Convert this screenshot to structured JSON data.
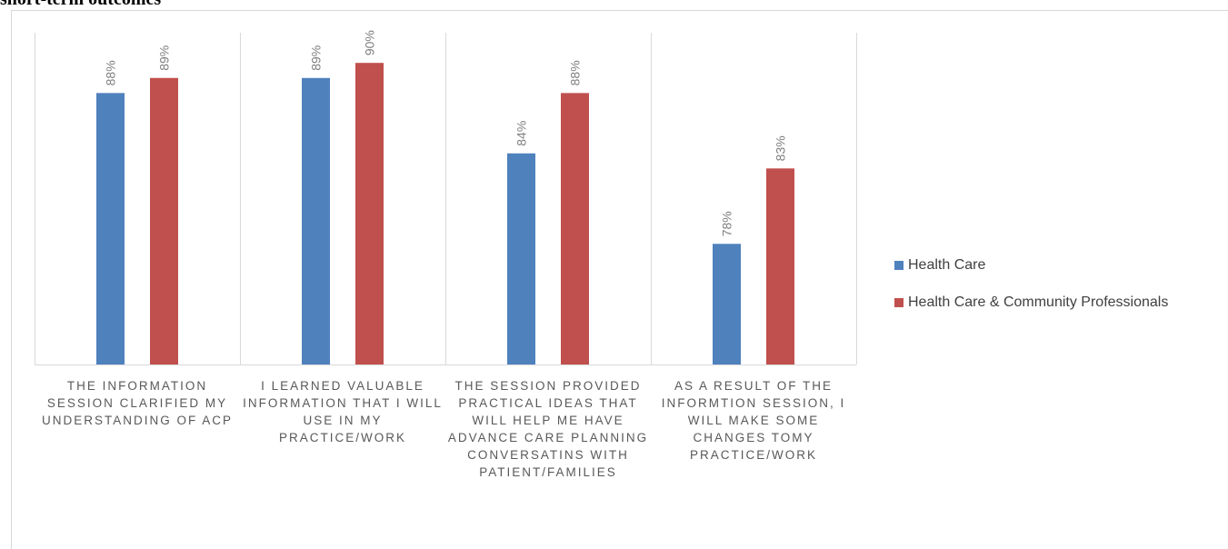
{
  "page": {
    "heading": "short-term outcomes"
  },
  "chart_data": {
    "type": "bar",
    "title": "",
    "xlabel": "",
    "ylabel": "",
    "ylim": [
      70,
      92
    ],
    "grid": "vertical-separators",
    "legend_position": "right",
    "categories": [
      "THE INFORMATION SESSION CLARIFIED MY UNDERSTANDING OF ACP",
      "I LEARNED VALUABLE INFORMATION THAT I WILL USE IN MY PRACTICE/WORK",
      "THE SESSION PROVIDED PRACTICAL IDEAS THAT WILL HELP ME HAVE ADVANCE CARE PLANNING CONVERSATINS WITH PATIENT/FAMILIES",
      "AS A RESULT OF THE INFORMTION SESSION, I WILL MAKE SOME CHANGES TOMY PRACTICE/WORK"
    ],
    "series": [
      {
        "name": "Health Care",
        "color": "#4f81bd",
        "values": [
          88,
          89,
          84,
          78
        ],
        "labels": [
          "88%",
          "89%",
          "84%",
          "78%"
        ]
      },
      {
        "name": "Health Care & Community Professionals",
        "color": "#c0504d",
        "values": [
          89,
          90,
          88,
          83
        ],
        "labels": [
          "89%",
          "90%",
          "88%",
          "83%"
        ]
      }
    ]
  }
}
